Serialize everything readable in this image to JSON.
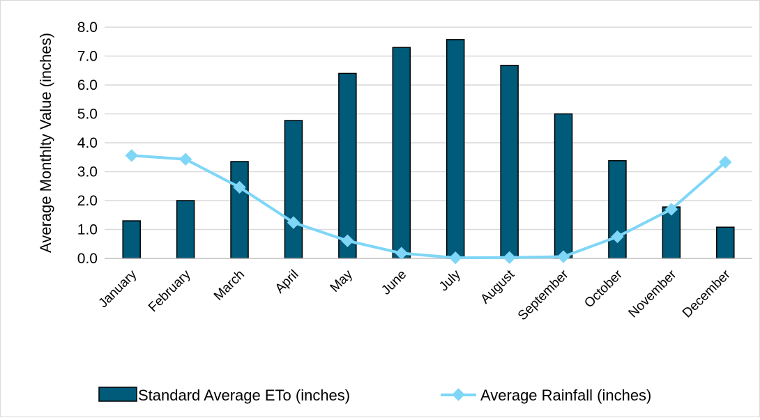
{
  "chart_data": {
    "type": "bar",
    "title": "",
    "xlabel": "",
    "ylabel": "Average Monthlty Value (inches)",
    "ylim": [
      0,
      8
    ],
    "yticks": [
      "0.0",
      "1.0",
      "2.0",
      "3.0",
      "4.0",
      "5.0",
      "6.0",
      "7.0",
      "8.0"
    ],
    "grid": true,
    "legend_position": "bottom",
    "categories": [
      "January",
      "February",
      "March",
      "April",
      "May",
      "June",
      "July",
      "August",
      "September",
      "October",
      "November",
      "December"
    ],
    "series": [
      {
        "name": "Standard Average ETo (inches)",
        "type": "bar",
        "color": "#005a7a",
        "values": [
          1.3,
          2.0,
          3.35,
          4.77,
          6.4,
          7.3,
          7.57,
          6.68,
          5.0,
          3.38,
          1.78,
          1.08
        ]
      },
      {
        "name": "Average Rainfall (inches)",
        "type": "line",
        "color": "#7fd6f7",
        "values": [
          3.56,
          3.43,
          2.46,
          1.24,
          0.61,
          0.18,
          0.02,
          0.03,
          0.06,
          0.75,
          1.7,
          3.33
        ]
      }
    ]
  }
}
